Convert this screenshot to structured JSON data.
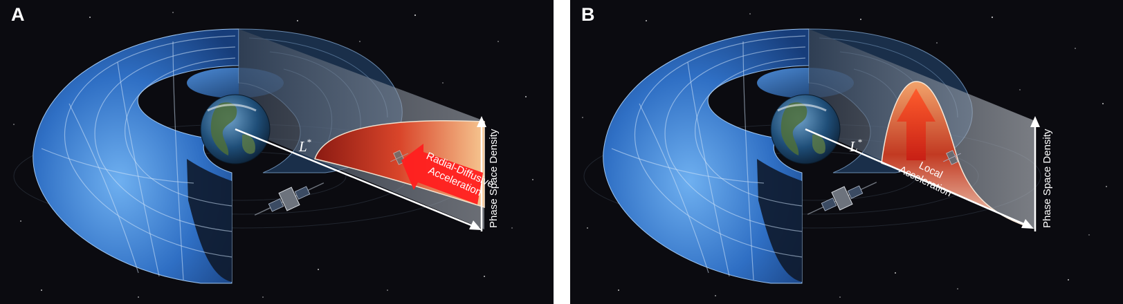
{
  "panels": [
    {
      "letter": "A",
      "lstar_symbol": "L",
      "lstar_super": "*",
      "y_axis_label": "Phase Space Density",
      "process_line1": "Radial-Diffusive",
      "process_line2": "Acceleration"
    },
    {
      "letter": "B",
      "lstar_symbol": "L",
      "lstar_super": "*",
      "y_axis_label": "Phase Space Density",
      "process_line1": "Local",
      "process_line2": "Acceleration"
    }
  ],
  "colors": {
    "space": "#0b0b10",
    "belt_blue": "#2f6fc4",
    "belt_light": "#6aa8ea",
    "psd_warm": "#e2472b",
    "arrow_red": "#ff1f1f",
    "axis": "#ffffff"
  },
  "icons": [
    "earth-icon",
    "satellite-icon",
    "arrow-icon"
  ]
}
